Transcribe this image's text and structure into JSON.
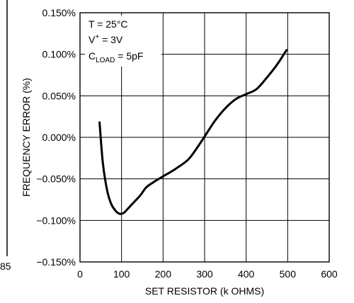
{
  "chart_data": {
    "type": "line",
    "xlabel": "SET RESISTOR (k OHMS)",
    "ylabel": "FREQUENCY ERROR (%)",
    "xlim": [
      0,
      600
    ],
    "ylim": [
      -0.15,
      0.15
    ],
    "x_ticks": [
      "0",
      "100",
      "200",
      "300",
      "400",
      "500",
      "600"
    ],
    "y_ticks": [
      "−0.150%",
      "−0.100%",
      "−0.050%",
      "0.000%",
      "0.050%",
      "0.100%",
      "0.150%"
    ],
    "grid": true,
    "annotations": {
      "temp": "T = 25°C",
      "vplus_main": "V",
      "vplus_sup": "+",
      "vplus_rest": " = 3V",
      "cload_main": "C",
      "cload_sub": "LOAD",
      "cload_rest": " = 5pF"
    },
    "series": [
      {
        "x": [
          47,
          55,
          65,
          75,
          85,
          95,
          105,
          115,
          130,
          145,
          160,
          180,
          200,
          230,
          260,
          280,
          300,
          325,
          350,
          375,
          400,
          425,
          450,
          475,
          497
        ],
        "y": [
          0.018,
          -0.031,
          -0.063,
          -0.08,
          -0.088,
          -0.092,
          -0.091,
          -0.086,
          -0.078,
          -0.07,
          -0.06,
          -0.053,
          -0.047,
          -0.038,
          -0.027,
          -0.014,
          0.001,
          0.02,
          0.035,
          0.046,
          0.052,
          0.058,
          0.072,
          0.088,
          0.105
        ]
      }
    ],
    "left_edge_text": "85"
  }
}
